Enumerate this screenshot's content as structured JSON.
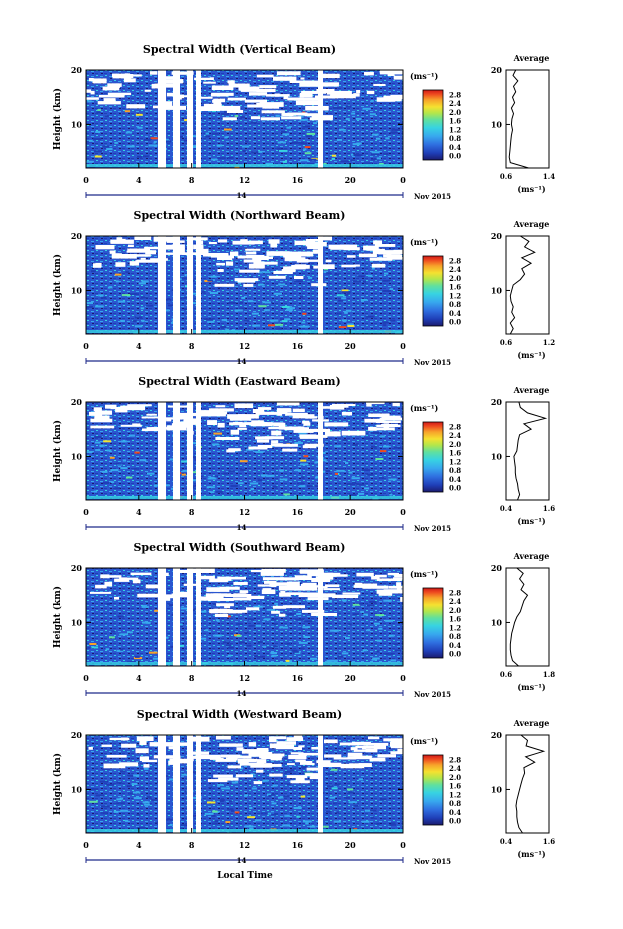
{
  "figure": {
    "xlabel": "Local Time",
    "date_label": "Nov 2015",
    "day_label": "14",
    "height_label": "Height (km)",
    "avg_title": "Average",
    "unit_label": "(ms⁻¹)",
    "colorbar_ticks": [
      "0.0",
      "0.4",
      "0.8",
      "1.2",
      "1.6",
      "2.0",
      "2.4",
      "2.8"
    ],
    "colormap": [
      "#1b1b6e",
      "#1f3fb8",
      "#2f6fe0",
      "#37a8ee",
      "#37d3e2",
      "#5fe0a0",
      "#b4e64a",
      "#f5e130",
      "#f7a12a",
      "#ee4a1f",
      "#d01818"
    ]
  },
  "chart_data": [
    {
      "type": "heatmap",
      "title": "Spectral Width (Vertical Beam)",
      "xlabel": "Local Time",
      "ylabel": "Height (km)",
      "xlim": [
        0,
        24
      ],
      "ylim": [
        2,
        20
      ],
      "xticks": [
        "0",
        "4",
        "8",
        "12",
        "16",
        "20",
        "0"
      ],
      "yticks": [
        "10",
        "20"
      ],
      "colorbar": {
        "label": "(ms⁻¹)",
        "ticks": [
          "0.0",
          "0.4",
          "0.8",
          "1.2",
          "1.6",
          "2.0",
          "2.4",
          "2.8"
        ]
      },
      "profile": {
        "title": "Average",
        "xlabel": "(ms⁻¹)",
        "xlim": [
          0.6,
          1.4
        ],
        "xticks": [
          "0.6",
          "1.4"
        ],
        "yticks": [
          "10",
          "20"
        ],
        "heights": [
          2,
          3,
          4,
          5,
          6,
          7,
          8,
          9,
          10,
          11,
          12,
          13,
          14,
          15,
          16,
          17,
          18,
          19,
          20
        ],
        "values": [
          1.02,
          0.68,
          0.66,
          0.67,
          0.68,
          0.69,
          0.7,
          0.72,
          0.7,
          0.71,
          0.74,
          0.7,
          0.76,
          0.72,
          0.78,
          0.74,
          0.82,
          0.73,
          0.78
        ]
      }
    },
    {
      "type": "heatmap",
      "title": "Spectral Width (Northward Beam)",
      "xlabel": "Local Time",
      "ylabel": "Height (km)",
      "xlim": [
        0,
        24
      ],
      "ylim": [
        2,
        20
      ],
      "xticks": [
        "0",
        "4",
        "8",
        "12",
        "16",
        "20",
        "0"
      ],
      "yticks": [
        "10",
        "20"
      ],
      "colorbar": {
        "label": "(ms⁻¹)",
        "ticks": [
          "0.0",
          "0.4",
          "0.8",
          "1.2",
          "1.6",
          "2.0",
          "2.4",
          "2.8"
        ]
      },
      "profile": {
        "title": "Average",
        "xlabel": "(ms⁻¹)",
        "xlim": [
          0.6,
          1.2
        ],
        "xticks": [
          "0.6",
          "1.2"
        ],
        "yticks": [
          "10",
          "20"
        ],
        "heights": [
          2,
          3,
          4,
          5,
          6,
          7,
          8,
          9,
          10,
          11,
          12,
          13,
          14,
          15,
          16,
          17,
          18,
          19,
          20
        ],
        "values": [
          0.66,
          0.7,
          0.66,
          0.72,
          0.68,
          0.7,
          0.67,
          0.66,
          0.68,
          0.7,
          0.8,
          0.86,
          0.82,
          0.95,
          0.82,
          1.0,
          0.86,
          0.92,
          0.8
        ]
      }
    },
    {
      "type": "heatmap",
      "title": "Spectral Width (Eastward Beam)",
      "xlabel": "Local Time",
      "ylabel": "Height (km)",
      "xlim": [
        0,
        24
      ],
      "ylim": [
        2,
        20
      ],
      "xticks": [
        "0",
        "4",
        "8",
        "12",
        "16",
        "20",
        "0"
      ],
      "yticks": [
        "10",
        "20"
      ],
      "colorbar": {
        "label": "(ms⁻¹)",
        "ticks": [
          "0.0",
          "0.4",
          "0.8",
          "1.2",
          "1.6",
          "2.0",
          "2.4",
          "2.8"
        ]
      },
      "profile": {
        "title": "Average",
        "xlabel": "(ms⁻¹)",
        "xlim": [
          0.4,
          1.6
        ],
        "xticks": [
          "0.4",
          "1.6"
        ],
        "yticks": [
          "10",
          "20"
        ],
        "heights": [
          2,
          3,
          4,
          5,
          6,
          7,
          8,
          9,
          10,
          11,
          12,
          13,
          14,
          15,
          16,
          17,
          18,
          19,
          20
        ],
        "values": [
          0.72,
          0.78,
          0.74,
          0.72,
          0.68,
          0.66,
          0.66,
          0.64,
          0.62,
          0.7,
          0.72,
          0.74,
          0.78,
          1.1,
          0.9,
          1.5,
          1.0,
          0.8,
          0.76
        ]
      }
    },
    {
      "type": "heatmap",
      "title": "Spectral Width (Southward Beam)",
      "xlabel": "Local Time",
      "ylabel": "Height (km)",
      "xlim": [
        0,
        24
      ],
      "ylim": [
        2,
        20
      ],
      "xticks": [
        "0",
        "4",
        "8",
        "12",
        "16",
        "20",
        "0"
      ],
      "yticks": [
        "10",
        "20"
      ],
      "colorbar": {
        "label": "(ms⁻¹)",
        "ticks": [
          "0.0",
          "0.4",
          "0.8",
          "1.2",
          "1.6",
          "2.0",
          "2.4",
          "2.8"
        ]
      },
      "profile": {
        "title": "Average",
        "xlabel": "(ms⁻¹)",
        "xlim": [
          0.6,
          1.8
        ],
        "xticks": [
          "0.6",
          "1.8"
        ],
        "yticks": [
          "10",
          "20"
        ],
        "heights": [
          2,
          3,
          4,
          5,
          6,
          7,
          8,
          9,
          10,
          11,
          12,
          13,
          14,
          15,
          16,
          17,
          18,
          19,
          20
        ],
        "values": [
          0.95,
          0.78,
          0.74,
          0.72,
          0.72,
          0.74,
          0.76,
          0.8,
          0.84,
          0.9,
          1.0,
          1.05,
          1.1,
          1.2,
          1.02,
          1.1,
          0.98,
          1.08,
          0.9
        ]
      }
    },
    {
      "type": "heatmap",
      "title": "Spectral Width (Westward Beam)",
      "xlabel": "Local Time",
      "ylabel": "Height (km)",
      "xlim": [
        0,
        24
      ],
      "ylim": [
        2,
        20
      ],
      "xticks": [
        "0",
        "4",
        "8",
        "12",
        "16",
        "20",
        "0"
      ],
      "yticks": [
        "10",
        "20"
      ],
      "colorbar": {
        "label": "(ms⁻¹)",
        "ticks": [
          "0.0",
          "0.4",
          "0.8",
          "1.2",
          "1.6",
          "2.0",
          "2.4",
          "2.8"
        ]
      },
      "profile": {
        "title": "Average",
        "xlabel": "(ms⁻¹)",
        "xlim": [
          0.4,
          1.6
        ],
        "xticks": [
          "0.4",
          "1.6"
        ],
        "yticks": [
          "10",
          "20"
        ],
        "heights": [
          2,
          3,
          4,
          5,
          6,
          7,
          8,
          9,
          10,
          11,
          12,
          13,
          14,
          15,
          16,
          17,
          18,
          19,
          20
        ],
        "values": [
          0.86,
          0.76,
          0.72,
          0.7,
          0.7,
          0.68,
          0.7,
          0.74,
          0.78,
          0.82,
          0.86,
          0.92,
          0.9,
          1.2,
          0.95,
          1.45,
          0.96,
          1.0,
          0.82
        ]
      }
    }
  ]
}
